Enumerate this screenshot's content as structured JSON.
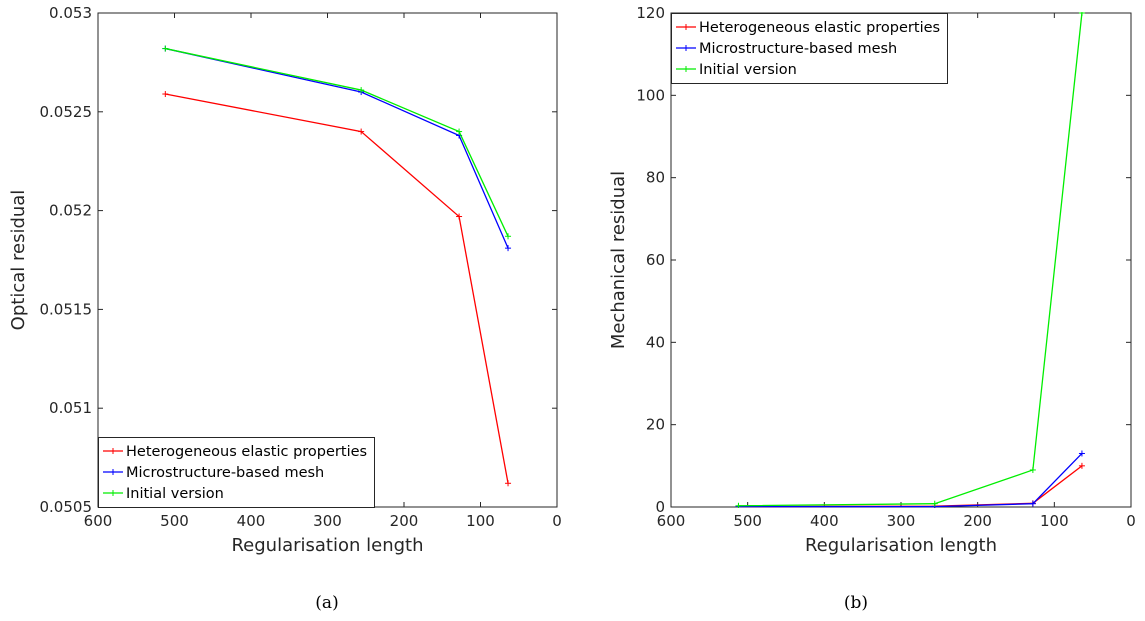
{
  "chart_data": [
    {
      "type": "line",
      "caption": "(a)",
      "xlabel": "Regularisation length",
      "ylabel": "Optical residual",
      "xlim": [
        600,
        0
      ],
      "ylim": [
        0.0505,
        0.053
      ],
      "xticks": [
        600,
        500,
        400,
        300,
        200,
        100,
        0
      ],
      "xtick_labels": [
        "600",
        "500",
        "400",
        "300",
        "200",
        "100",
        "0"
      ],
      "yticks": [
        0.0505,
        0.051,
        0.0515,
        0.052,
        0.0525,
        0.053
      ],
      "ytick_labels": [
        "0.0505",
        "0.051",
        "0.0515",
        "0.052",
        "0.0525",
        "0.053"
      ],
      "grid": false,
      "legend_position": "bottom-left",
      "series": [
        {
          "name": "Heterogeneous elastic properties",
          "color": "#ff0000",
          "x": [
            512,
            256,
            128,
            64
          ],
          "y": [
            0.05259,
            0.0524,
            0.05197,
            0.05062
          ]
        },
        {
          "name": "Microstructure-based mesh",
          "color": "#0000ff",
          "x": [
            512,
            256,
            128,
            64
          ],
          "y": [
            0.05282,
            0.0526,
            0.05238,
            0.05181
          ]
        },
        {
          "name": "Initial version",
          "color": "#00ee00",
          "x": [
            512,
            256,
            128,
            64
          ],
          "y": [
            0.05282,
            0.05261,
            0.0524,
            0.05187
          ]
        }
      ]
    },
    {
      "type": "line",
      "caption": "(b)",
      "xlabel": "Regularisation length",
      "ylabel": "Mechanical residual",
      "xlim": [
        600,
        0
      ],
      "ylim": [
        0,
        120
      ],
      "xticks": [
        600,
        500,
        400,
        300,
        200,
        100,
        0
      ],
      "xtick_labels": [
        "600",
        "500",
        "400",
        "300",
        "200",
        "100",
        "0"
      ],
      "yticks": [
        0,
        20,
        40,
        60,
        80,
        100,
        120
      ],
      "ytick_labels": [
        "0",
        "20",
        "40",
        "60",
        "80",
        "100",
        "120"
      ],
      "grid": false,
      "legend_position": "top-left",
      "series": [
        {
          "name": "Heterogeneous elastic properties",
          "color": "#ff0000",
          "x": [
            512,
            256,
            128,
            64
          ],
          "y": [
            0.1,
            0.2,
            0.9,
            10
          ]
        },
        {
          "name": "Microstructure-based mesh",
          "color": "#0000ff",
          "x": [
            512,
            256,
            128,
            64
          ],
          "y": [
            0.1,
            0.1,
            0.8,
            13
          ]
        },
        {
          "name": "Initial version",
          "color": "#00ee00",
          "x": [
            512,
            256,
            128,
            64
          ],
          "y": [
            0.3,
            0.8,
            9,
            120
          ]
        }
      ]
    }
  ]
}
